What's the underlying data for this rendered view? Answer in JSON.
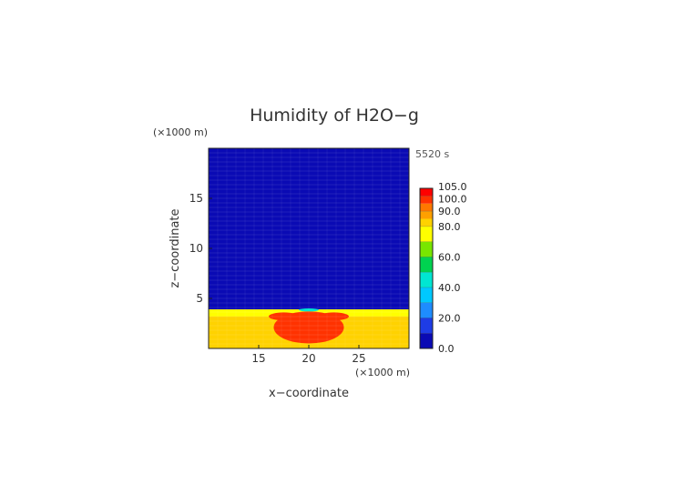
{
  "chart_data": {
    "type": "heatmap",
    "title": "Humidity of H2O−g",
    "xlabel": "x−coordinate",
    "ylabel": "z−coordinate",
    "x_unit": "(×1000 m)",
    "y_unit": "(×1000 m)",
    "time_label": "5520 s",
    "xlim": [
      10,
      30
    ],
    "ylim": [
      0,
      20
    ],
    "x_ticks": [
      15,
      20,
      25
    ],
    "y_ticks": [
      5,
      10,
      15
    ],
    "colorbar": {
      "min": 0,
      "max": 105,
      "tick_values": [
        0,
        20,
        40,
        60,
        80,
        90,
        100,
        105
      ],
      "tick_labels": [
        "0.0",
        "20.0",
        "40.0",
        "60.0",
        "80.0",
        "90.0",
        "100.0",
        "105.0"
      ],
      "levels": [
        {
          "from": 0,
          "to": 10,
          "color": "#0a0ab4"
        },
        {
          "from": 10,
          "to": 20,
          "color": "#1e3ce6"
        },
        {
          "from": 20,
          "to": 30,
          "color": "#1e8cff"
        },
        {
          "from": 30,
          "to": 40,
          "color": "#00c8ff"
        },
        {
          "from": 40,
          "to": 50,
          "color": "#00e6d2"
        },
        {
          "from": 50,
          "to": 60,
          "color": "#00d250"
        },
        {
          "from": 60,
          "to": 70,
          "color": "#78e600"
        },
        {
          "from": 70,
          "to": 80,
          "color": "#ffff00"
        },
        {
          "from": 80,
          "to": 85,
          "color": "#ffd200"
        },
        {
          "from": 85,
          "to": 90,
          "color": "#ffa000"
        },
        {
          "from": 90,
          "to": 95,
          "color": "#ff7800"
        },
        {
          "from": 95,
          "to": 100,
          "color": "#ff3200"
        },
        {
          "from": 100,
          "to": 105,
          "color": "#ff0000"
        }
      ]
    },
    "field_regions": [
      {
        "name": "upper-dry-layer",
        "z": [
          3.9,
          20
        ],
        "x": [
          10,
          30
        ],
        "value": 5
      },
      {
        "name": "boundary-layer-base",
        "z": [
          0,
          3.9
        ],
        "x": [
          10,
          30
        ],
        "value": 85
      },
      {
        "name": "boundary-layer-top-band",
        "z": [
          3.2,
          3.9
        ],
        "x": [
          10,
          30
        ],
        "value": 75
      },
      {
        "name": "moist-core",
        "z": [
          0.5,
          3.7
        ],
        "x": [
          16.5,
          23.5
        ],
        "value": 97
      },
      {
        "name": "moist-lobe-left",
        "z": [
          2.8,
          3.6
        ],
        "x": [
          16,
          19
        ],
        "value": 100
      },
      {
        "name": "moist-lobe-right",
        "z": [
          2.8,
          3.6
        ],
        "x": [
          21,
          24
        ],
        "value": 100
      },
      {
        "name": "center-top-cyan",
        "z": [
          3.7,
          4.0
        ],
        "x": [
          19,
          21
        ],
        "value": 45
      }
    ]
  }
}
